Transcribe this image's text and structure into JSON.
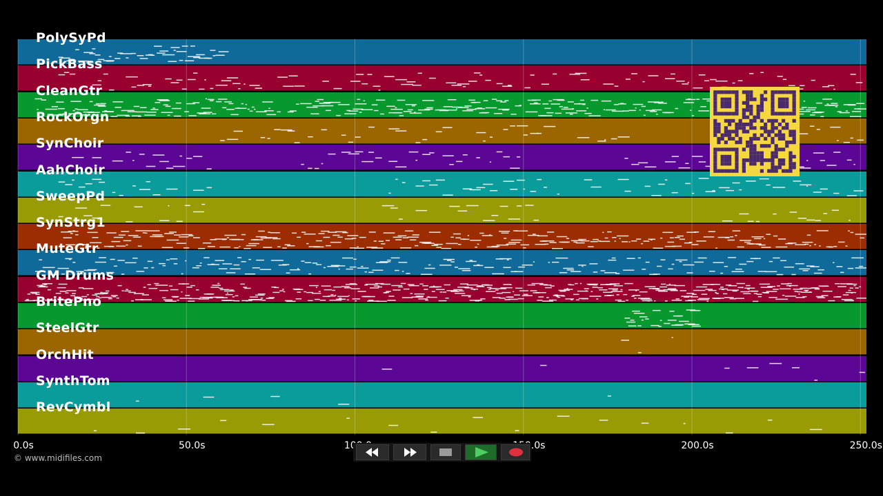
{
  "tracks": [
    {
      "name": "PolySyPd",
      "color": "#0f6a9a"
    },
    {
      "name": "PickBass",
      "color": "#97002f"
    },
    {
      "name": "CleanGtr",
      "color": "#07992e"
    },
    {
      "name": "RockOrgn",
      "color": "#9b6500"
    },
    {
      "name": "SynChoir",
      "color": "#5b0694"
    },
    {
      "name": "AahChoir",
      "color": "#0a9b9b"
    },
    {
      "name": "SweepPd",
      "color": "#999b05"
    },
    {
      "name": "SynStrg1",
      "color": "#9c2d00"
    },
    {
      "name": "MuteGtr",
      "color": "#0f6a9a"
    },
    {
      "name": "GM Drums",
      "color": "#97002f"
    },
    {
      "name": "BritePno",
      "color": "#07992e"
    },
    {
      "name": "SteelGtr",
      "color": "#9b6500"
    },
    {
      "name": "OrchHit",
      "color": "#5b0694"
    },
    {
      "name": "SynthTom",
      "color": "#0a9b9b"
    },
    {
      "name": "RevCymbl",
      "color": "#999b05"
    }
  ],
  "timeline": {
    "ticks": [
      "0.0s",
      "50.0s",
      "100.0s",
      "150.0s",
      "200.0s",
      "250.0s"
    ],
    "tick_seconds": [
      0,
      50,
      100,
      150,
      200,
      250
    ]
  },
  "copyright": "© www.midifiles.com",
  "transport": {
    "buttons": [
      {
        "id": "rewind",
        "icon": "rewind-icon"
      },
      {
        "id": "fast-forward",
        "icon": "fast-forward-icon"
      },
      {
        "id": "stop",
        "icon": "stop-icon"
      },
      {
        "id": "play",
        "icon": "play-icon"
      },
      {
        "id": "record",
        "icon": "record-icon"
      }
    ]
  },
  "colors": {
    "background": "#000000",
    "qr_background": "#f5d742",
    "qr_foreground": "#4a2a6a"
  }
}
